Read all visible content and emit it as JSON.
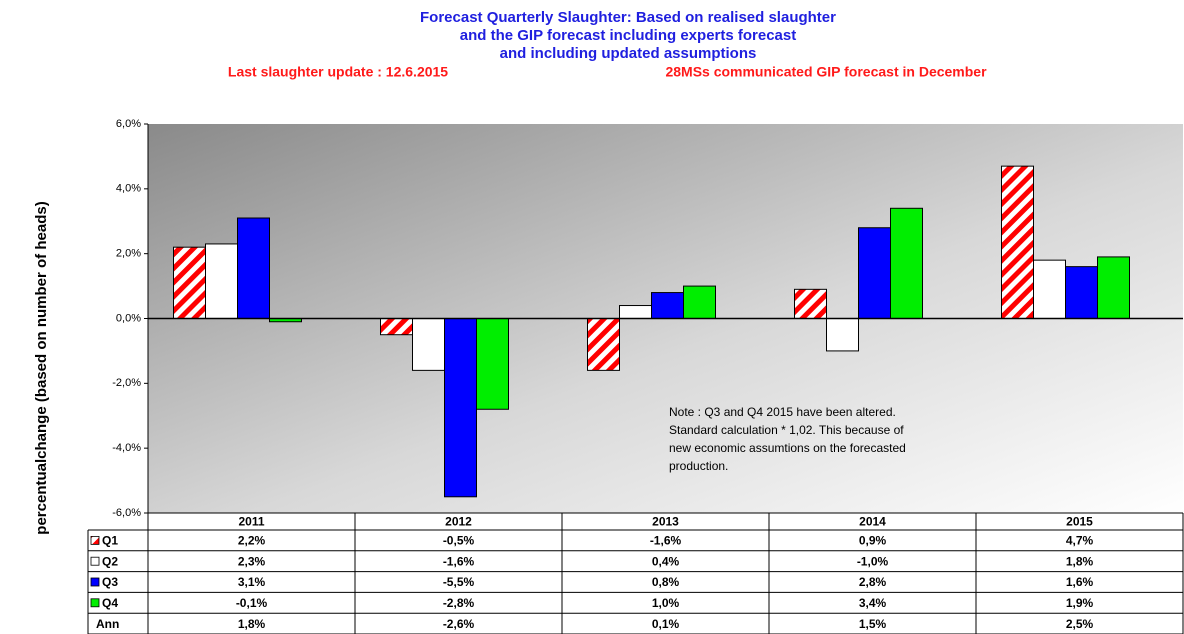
{
  "chart_data": {
    "type": "bar",
    "title": [
      "Forecast Quarterly  Slaughter:  Based on realised slaughter",
      "and the GIP forecast   including experts forecast",
      "and including updated assumptions"
    ],
    "subtitle": [
      "Last slaughter update : 12.6.2015",
      "28MSs communicated  GIP forecast in December"
    ],
    "y_label": "percentualchange (based on number of  heads)",
    "categories": [
      "2011",
      "2012",
      "2013",
      "2014",
      "2015"
    ],
    "series": [
      {
        "name": "Q1",
        "color": "#ff0000",
        "pattern": "diagonal-stripes",
        "values": [
          2.2,
          -0.5,
          -1.6,
          0.9,
          4.7
        ],
        "value_labels": [
          "2,2%",
          "-0,5%",
          "-1,6%",
          "0,9%",
          "4,7%"
        ]
      },
      {
        "name": "Q2",
        "color": "#ffffff",
        "values": [
          2.3,
          -1.6,
          0.4,
          -1.0,
          1.8
        ],
        "value_labels": [
          "2,3%",
          "-1,6%",
          "0,4%",
          "-1,0%",
          "1,8%"
        ]
      },
      {
        "name": "Q3",
        "color": "#0000ff",
        "values": [
          3.1,
          -5.5,
          0.8,
          2.8,
          1.6
        ],
        "value_labels": [
          "3,1%",
          "-5,5%",
          "0,8%",
          "2,8%",
          "1,6%"
        ]
      },
      {
        "name": "Q4",
        "color": "#00ee00",
        "values": [
          -0.1,
          -2.8,
          1.0,
          3.4,
          1.9
        ],
        "value_labels": [
          "-0,1%",
          "-2,8%",
          "1,0%",
          "3,4%",
          "1,9%"
        ]
      },
      {
        "name": "Ann",
        "values": [
          1.8,
          -2.6,
          0.1,
          1.5,
          2.5
        ],
        "value_labels": [
          "1,8%",
          "-2,6%",
          "0,1%",
          "1,5%",
          "2,5%"
        ]
      }
    ],
    "ylim": [
      -6,
      6
    ],
    "yticks": [
      {
        "value": -6,
        "label": "-6,0%"
      },
      {
        "value": -4,
        "label": "-4,0%"
      },
      {
        "value": -2,
        "label": "-2,0%"
      },
      {
        "value": 0,
        "label": "0,0%"
      },
      {
        "value": 2,
        "label": "2,0%"
      },
      {
        "value": 4,
        "label": "4,0%"
      },
      {
        "value": 6,
        "label": "6,0%"
      }
    ],
    "annotation": [
      "Note : Q3  and  Q4  2015    have been altered.",
      "Standard calculation * 1,02.  This because of",
      "new economic assumtions on the forecasted",
      "production."
    ]
  }
}
